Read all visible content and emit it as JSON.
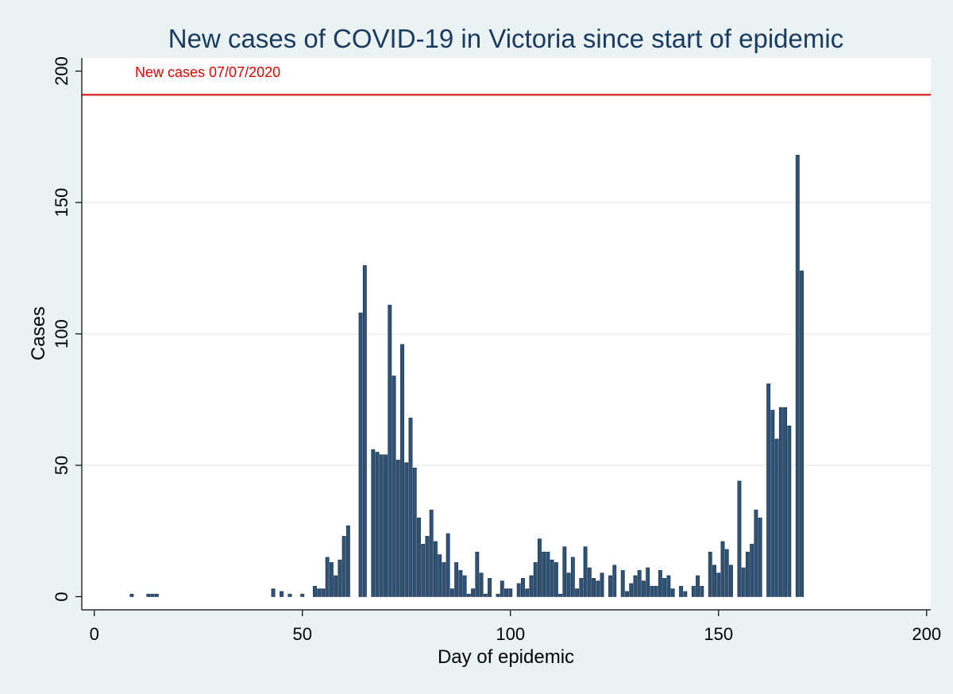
{
  "chart_data": {
    "type": "bar",
    "title": "New cases of COVID-19 in Victoria since start of epidemic",
    "xlabel": "Day of epidemic",
    "ylabel": "Cases",
    "xlim": [
      -3,
      201
    ],
    "ylim": [
      -5,
      205
    ],
    "x_ticks": [
      0,
      50,
      100,
      150,
      200
    ],
    "y_ticks": [
      0,
      50,
      100,
      150,
      200
    ],
    "grid": "horizontal",
    "reference_line": {
      "value": 191,
      "label": "New cases 07/07/2020",
      "color": "#e00000"
    },
    "bar_color": "#2e5377",
    "bar_edge_color": "#1a2f45",
    "background_color": "#eaf2f3",
    "plot_background": "#ffffff",
    "title_color": "#1a3a5f",
    "x": [
      9,
      13,
      14,
      15,
      43,
      45,
      47,
      50,
      53,
      54,
      55,
      56,
      57,
      58,
      59,
      60,
      61,
      64,
      65,
      67,
      68,
      69,
      70,
      71,
      72,
      73,
      74,
      75,
      76,
      77,
      78,
      79,
      80,
      81,
      82,
      83,
      84,
      85,
      86,
      87,
      88,
      89,
      90,
      91,
      92,
      93,
      94,
      95,
      97,
      98,
      99,
      100,
      102,
      103,
      104,
      105,
      106,
      107,
      108,
      109,
      110,
      111,
      112,
      113,
      114,
      115,
      116,
      117,
      118,
      119,
      120,
      121,
      122,
      124,
      125,
      127,
      128,
      129,
      130,
      131,
      132,
      133,
      134,
      135,
      136,
      137,
      138,
      139,
      141,
      142,
      144,
      145,
      146,
      148,
      149,
      150,
      151,
      152,
      153,
      155,
      156,
      157,
      158,
      159,
      160,
      162,
      163,
      164,
      165,
      166,
      167,
      169,
      170
    ],
    "values": [
      1,
      1,
      1,
      1,
      3,
      2,
      1,
      1,
      4,
      3,
      3,
      15,
      13,
      8,
      14,
      23,
      27,
      108,
      126,
      56,
      55,
      54,
      54,
      111,
      84,
      52,
      96,
      51,
      68,
      49,
      30,
      20,
      23,
      33,
      21,
      16,
      13,
      24,
      3,
      13,
      10,
      8,
      1,
      3,
      17,
      9,
      1,
      7,
      1,
      6,
      3,
      3,
      5,
      7,
      3,
      8,
      13,
      22,
      17,
      17,
      14,
      13,
      1,
      19,
      9,
      15,
      3,
      7,
      19,
      11,
      7,
      6,
      9,
      8,
      12,
      10,
      2,
      5,
      8,
      10,
      6,
      11,
      4,
      4,
      10,
      7,
      8,
      3,
      4,
      2,
      4,
      8,
      4,
      17,
      12,
      9,
      21,
      18,
      12,
      44,
      11,
      17,
      20,
      33,
      30,
      81,
      71,
      60,
      72,
      72,
      65,
      168,
      124
    ]
  }
}
